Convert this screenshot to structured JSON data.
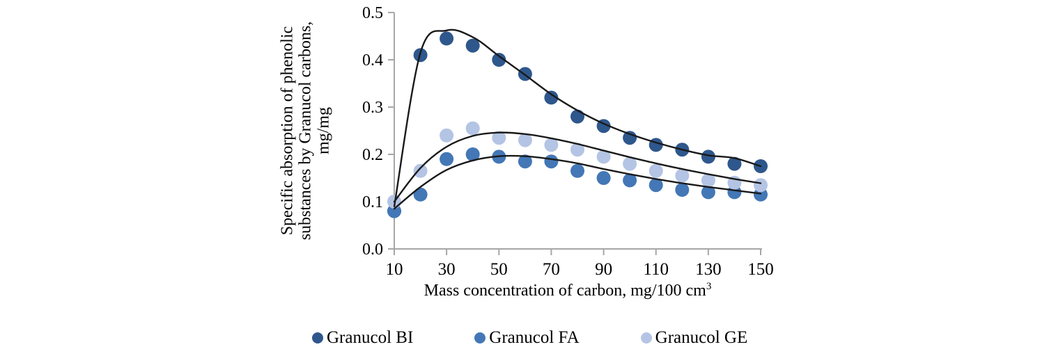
{
  "chart_data": {
    "type": "scatter",
    "title": "",
    "xlabel_main": "Mass concentration of carbon, mg/100 cm",
    "xlabel_sup": "3",
    "xlabel": "Mass concentration of carbon, mg/100 cm3",
    "ylabel": "Specific absorption of phenolic substances by Granucol carbons, mg/mg",
    "ylabel_lines": [
      "Specific absorption of phenolic",
      "substances by Granucol carbons,",
      "mg/mg"
    ],
    "xlim": [
      10,
      150
    ],
    "ylim": [
      0,
      0.5
    ],
    "grid": false,
    "legend_position": "bottom",
    "x": [
      10,
      20,
      30,
      40,
      50,
      60,
      70,
      80,
      90,
      100,
      110,
      120,
      130,
      140,
      150
    ],
    "xticks": [
      10,
      30,
      50,
      70,
      90,
      110,
      130,
      150
    ],
    "yticks": [
      {
        "value": 0.0,
        "label": "0.0"
      },
      {
        "value": 0.1,
        "label": "0.1"
      },
      {
        "value": 0.2,
        "label": "0.2"
      },
      {
        "value": 0.3,
        "label": "0.3"
      },
      {
        "value": 0.4,
        "label": "0.4"
      },
      {
        "value": 0.5,
        "label": "0.5"
      }
    ],
    "axis_color": "#A6A6A6",
    "curve_color": "#1A1A1A",
    "series": [
      {
        "name": "Granucol BI",
        "color": "#2E578C",
        "values": [
          0.08,
          0.41,
          0.445,
          0.43,
          0.4,
          0.37,
          0.32,
          0.28,
          0.26,
          0.235,
          0.22,
          0.21,
          0.195,
          0.18,
          0.175
        ],
        "trend": [
          0.09,
          0.415,
          0.462,
          0.448,
          0.408,
          0.368,
          0.327,
          0.293,
          0.265,
          0.243,
          0.225,
          0.21,
          0.198,
          0.192,
          0.175
        ]
      },
      {
        "name": "Granucol FA",
        "color": "#4377B6",
        "values": [
          0.08,
          0.115,
          0.19,
          0.2,
          0.195,
          0.185,
          0.185,
          0.165,
          0.15,
          0.145,
          0.135,
          0.125,
          0.12,
          0.12,
          0.115
        ],
        "trend": [
          0.085,
          0.131,
          0.167,
          0.187,
          0.196,
          0.196,
          0.19,
          0.181,
          0.169,
          0.158,
          0.148,
          0.139,
          0.131,
          0.124,
          0.117
        ]
      },
      {
        "name": "Granucol GE",
        "color": "#B4C4E4",
        "values": [
          0.1,
          0.165,
          0.24,
          0.255,
          0.235,
          0.23,
          0.22,
          0.21,
          0.195,
          0.18,
          0.165,
          0.155,
          0.145,
          0.14,
          0.135
        ],
        "trend": [
          0.1,
          0.171,
          0.216,
          0.239,
          0.246,
          0.243,
          0.234,
          0.222,
          0.208,
          0.194,
          0.181,
          0.169,
          0.158,
          0.148,
          0.139
        ]
      }
    ]
  }
}
